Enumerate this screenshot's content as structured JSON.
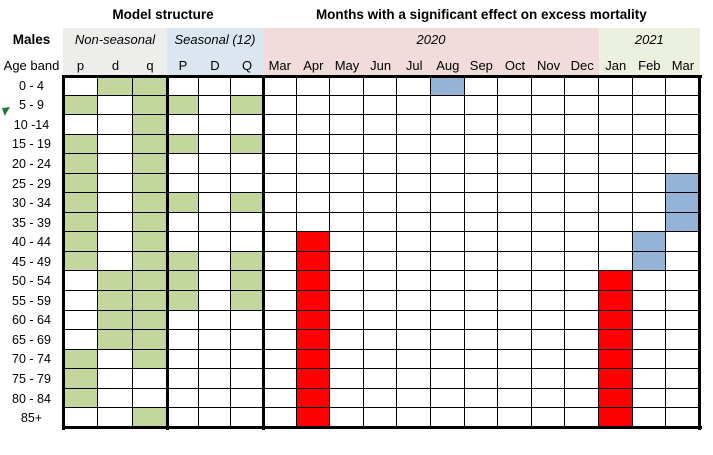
{
  "colors": {
    "cell_green": "#C3D69B",
    "cell_red": "#FF0000",
    "cell_blue": "#95B3D7",
    "band_gray": "#EDEDEB",
    "band_blue": "#DCE6F1",
    "band_pink": "#F2DCDB",
    "band_green": "#EBF1DE",
    "border": "#000000"
  },
  "chart_data": {
    "type": "heatmap",
    "title_left": "Model structure",
    "title_right": "Months with a significant effect on excess mortality",
    "group_label": "Males",
    "row_axis_label": "Age band",
    "sections": {
      "non_seasonal": {
        "label": "Non-seasonal",
        "columns": [
          "p",
          "d",
          "q"
        ]
      },
      "seasonal": {
        "label": "Seasonal (12)",
        "columns": [
          "P",
          "D",
          "Q"
        ]
      },
      "year_2020": {
        "label": "2020",
        "month_count": 10
      },
      "year_2021": {
        "label": "2021",
        "month_count": 3
      }
    },
    "month_columns": [
      "Mar",
      "Apr",
      "May",
      "Jun",
      "Jul",
      "Aug",
      "Sep",
      "Oct",
      "Nov",
      "Dec",
      "Jan",
      "Feb",
      "Mar"
    ],
    "rows": [
      "0 - 4",
      "5 - 9",
      "10 -14",
      "15 - 19",
      "20 - 24",
      "25 - 29",
      "30 - 34",
      "35 - 39",
      "40 - 44",
      "45 - 49",
      "50 - 54",
      "55 - 59",
      "60 - 64",
      "65 - 69",
      "70 - 74",
      "75 - 79",
      "80 - 84",
      "85+"
    ],
    "model_matrix": [
      [
        0,
        1,
        1,
        0,
        0,
        0
      ],
      [
        1,
        0,
        1,
        1,
        0,
        1
      ],
      [
        0,
        0,
        1,
        0,
        0,
        0
      ],
      [
        1,
        0,
        1,
        1,
        0,
        1
      ],
      [
        1,
        0,
        1,
        0,
        0,
        0
      ],
      [
        1,
        0,
        1,
        0,
        0,
        0
      ],
      [
        1,
        0,
        1,
        1,
        0,
        1
      ],
      [
        1,
        0,
        1,
        0,
        0,
        0
      ],
      [
        1,
        0,
        1,
        0,
        0,
        0
      ],
      [
        1,
        0,
        1,
        1,
        0,
        1
      ],
      [
        0,
        1,
        1,
        1,
        0,
        1
      ],
      [
        0,
        1,
        1,
        1,
        0,
        1
      ],
      [
        0,
        1,
        1,
        0,
        0,
        0
      ],
      [
        0,
        1,
        1,
        0,
        0,
        0
      ],
      [
        1,
        0,
        1,
        0,
        0,
        0
      ],
      [
        1,
        0,
        0,
        0,
        0,
        0
      ],
      [
        1,
        0,
        0,
        0,
        0,
        0
      ],
      [
        0,
        0,
        1,
        0,
        0,
        0
      ]
    ],
    "month_matrix": [
      [
        "",
        "",
        "",
        "",
        "",
        "blue",
        "",
        "",
        "",
        "",
        "",
        "",
        ""
      ],
      [
        "",
        "",
        "",
        "",
        "",
        "",
        "",
        "",
        "",
        "",
        "",
        "",
        ""
      ],
      [
        "",
        "",
        "",
        "",
        "",
        "",
        "",
        "",
        "",
        "",
        "",
        "",
        ""
      ],
      [
        "",
        "",
        "",
        "",
        "",
        "",
        "",
        "",
        "",
        "",
        "",
        "",
        ""
      ],
      [
        "",
        "",
        "",
        "",
        "",
        "",
        "",
        "",
        "",
        "",
        "",
        "",
        ""
      ],
      [
        "",
        "",
        "",
        "",
        "",
        "",
        "",
        "",
        "",
        "",
        "",
        "",
        "blue"
      ],
      [
        "",
        "",
        "",
        "",
        "",
        "",
        "",
        "",
        "",
        "",
        "",
        "",
        "blue"
      ],
      [
        "",
        "",
        "",
        "",
        "",
        "",
        "",
        "",
        "",
        "",
        "",
        "",
        "blue"
      ],
      [
        "",
        "red",
        "",
        "",
        "",
        "",
        "",
        "",
        "",
        "",
        "",
        "blue",
        ""
      ],
      [
        "",
        "red",
        "",
        "",
        "",
        "",
        "",
        "",
        "",
        "",
        "",
        "blue",
        ""
      ],
      [
        "",
        "red",
        "",
        "",
        "",
        "",
        "",
        "",
        "",
        "",
        "red",
        "",
        ""
      ],
      [
        "",
        "red",
        "",
        "",
        "",
        "",
        "",
        "",
        "",
        "",
        "red",
        "",
        ""
      ],
      [
        "",
        "red",
        "",
        "",
        "",
        "",
        "",
        "",
        "",
        "",
        "red",
        "",
        ""
      ],
      [
        "",
        "red",
        "",
        "",
        "",
        "",
        "",
        "",
        "",
        "",
        "red",
        "",
        ""
      ],
      [
        "",
        "red",
        "",
        "",
        "",
        "",
        "",
        "",
        "",
        "",
        "red",
        "",
        ""
      ],
      [
        "",
        "red",
        "",
        "",
        "",
        "",
        "",
        "",
        "",
        "",
        "red",
        "",
        ""
      ],
      [
        "",
        "red",
        "",
        "",
        "",
        "",
        "",
        "",
        "",
        "",
        "red",
        "",
        ""
      ],
      [
        "",
        "red",
        "",
        "",
        "",
        "",
        "",
        "",
        "",
        "",
        "red",
        "",
        ""
      ]
    ]
  }
}
